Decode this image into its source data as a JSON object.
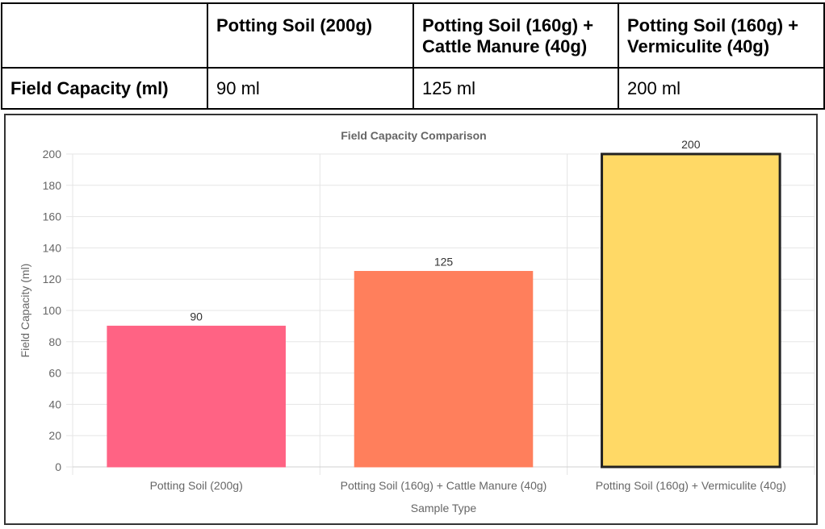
{
  "table": {
    "headers": [
      "",
      "Potting Soil (200g)",
      "Potting Soil (160g) + Cattle Manure (40g)",
      "Potting Soil (160g) + Vermiculite (40g)"
    ],
    "row_label": "Field Capacity (ml)",
    "cells": [
      "90 ml",
      "125 ml",
      "200 ml"
    ]
  },
  "chart_data": {
    "type": "bar",
    "title": "Field Capacity Comparison",
    "xlabel": "Sample Type",
    "ylabel": "Field Capacity (ml)",
    "categories": [
      "Potting Soil (200g)",
      "Potting Soil (160g) + Cattle Manure (40g)",
      "Potting Soil (160g) + Vermiculite (40g)"
    ],
    "values": [
      90,
      125,
      200
    ],
    "data_labels": [
      "90",
      "125",
      "200"
    ],
    "ylim": [
      0,
      200
    ],
    "yticks": [
      "0",
      "20",
      "40",
      "60",
      "80",
      "100",
      "120",
      "140",
      "160",
      "180",
      "200"
    ],
    "colors": [
      "#ff6384",
      "#ff7f5c",
      "#ffd966"
    ],
    "highlighted_index": 2,
    "grid": true,
    "legend": "none"
  }
}
